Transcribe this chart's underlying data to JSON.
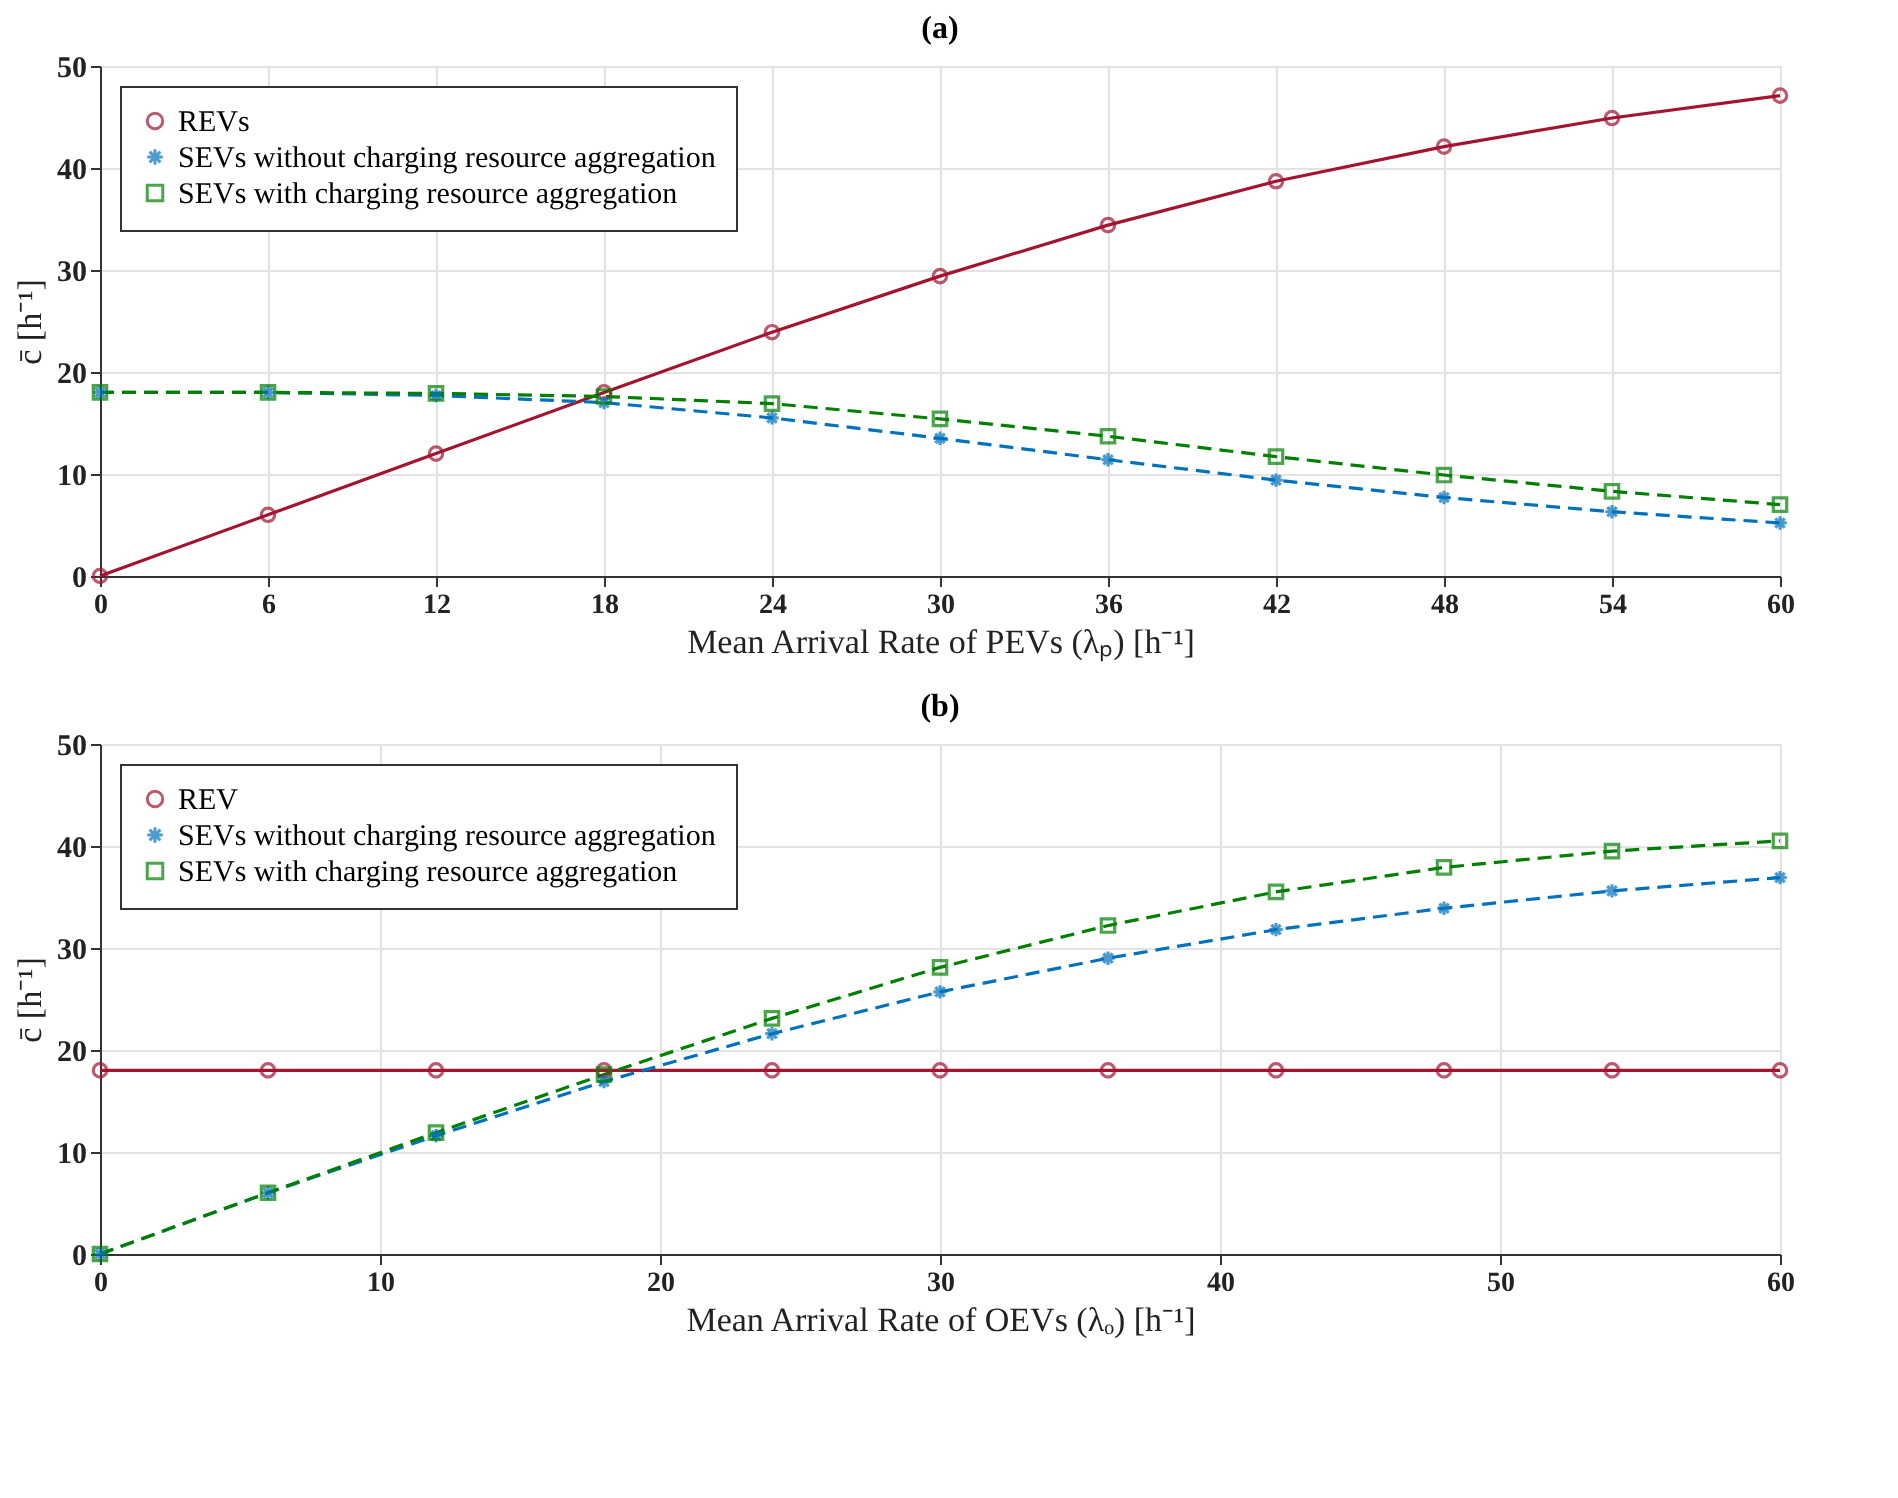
{
  "chart_data": [
    {
      "type": "line",
      "title": "(a)",
      "xlabel": "Mean Arrival Rate of PEVs (λₚ) [h⁻¹]",
      "ylabel": "c̄ [h⁻¹]",
      "x": [
        0,
        6,
        12,
        18,
        24,
        30,
        36,
        42,
        48,
        54,
        60
      ],
      "series": [
        {
          "name": "REVs",
          "color": "#a2142f",
          "marker": "circle",
          "line_style": "solid",
          "values": [
            0,
            6,
            12,
            18,
            23.9,
            29.4,
            34.4,
            38.7,
            42.1,
            44.9,
            47.1
          ]
        },
        {
          "name": "SEVs without charging resource aggregation",
          "color": "#0072bd",
          "marker": "cross",
          "line_style": "dashed",
          "values": [
            18,
            18,
            17.7,
            17,
            15.5,
            13.5,
            11.4,
            9.4,
            7.7,
            6.3,
            5.2
          ]
        },
        {
          "name": "SEVs with charging resource aggregation",
          "color": "#008000",
          "marker": "square",
          "line_style": "dashed",
          "values": [
            18,
            18,
            17.9,
            17.6,
            16.9,
            15.4,
            13.7,
            11.7,
            9.9,
            8.3,
            7.0
          ]
        }
      ],
      "xlim": [
        0,
        60
      ],
      "xticks": [
        0,
        6,
        12,
        18,
        24,
        30,
        36,
        42,
        48,
        54,
        60
      ],
      "ylim": [
        0,
        50
      ],
      "yticks": [
        0,
        10,
        20,
        30,
        40,
        50
      ],
      "grid": true,
      "legend": "top left"
    },
    {
      "type": "line",
      "title": "(b)",
      "xlabel": "Mean Arrival Rate of OEVs (λₒ) [h⁻¹]",
      "ylabel": "c̄ [h⁻¹]",
      "x": [
        0,
        6,
        12,
        18,
        24,
        30,
        36,
        42,
        48,
        54,
        60
      ],
      "series": [
        {
          "name": "REV",
          "color": "#a2142f",
          "marker": "circle",
          "line_style": "solid",
          "values": [
            18,
            18,
            18,
            18,
            18,
            18,
            18,
            18,
            18,
            18,
            18
          ]
        },
        {
          "name": "SEVs without charging resource aggregation",
          "color": "#0072bd",
          "marker": "cross",
          "line_style": "dashed",
          "values": [
            0,
            6,
            11.6,
            16.9,
            21.6,
            25.7,
            29.0,
            31.8,
            33.9,
            35.6,
            36.9
          ]
        },
        {
          "name": "SEVs with charging resource aggregation",
          "color": "#008000",
          "marker": "square",
          "line_style": "dashed",
          "values": [
            0,
            6,
            11.9,
            17.6,
            23.1,
            28.1,
            32.2,
            35.5,
            37.9,
            39.5,
            40.5
          ]
        }
      ],
      "xlim": [
        0,
        60
      ],
      "xticks": [
        0,
        10,
        20,
        30,
        40,
        50,
        60
      ],
      "ylim": [
        0,
        50
      ],
      "yticks": [
        0,
        10,
        20,
        30,
        40,
        50
      ],
      "grid": true,
      "legend": "top left"
    }
  ]
}
